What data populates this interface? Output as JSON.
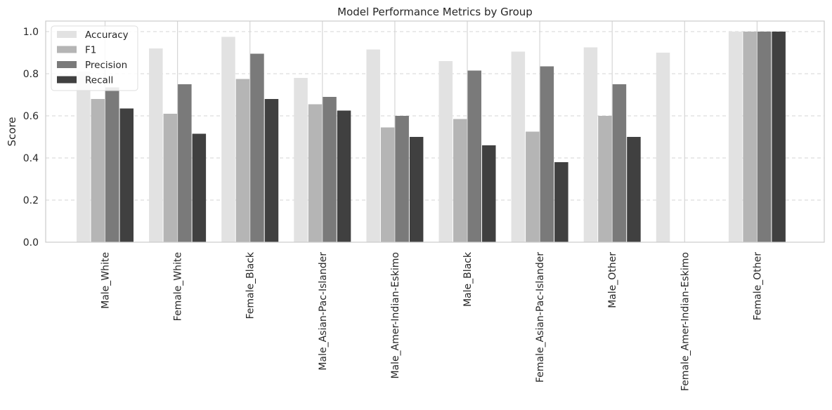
{
  "chart_data": {
    "type": "bar",
    "title": "Model Performance Metrics by Group",
    "xlabel": "",
    "ylabel": "Score",
    "ylim": [
      0,
      1.05
    ],
    "yticks": [
      "0.0",
      "0.2",
      "0.4",
      "0.6",
      "0.8",
      "1.0"
    ],
    "grid": "dashed-horizontal-and-vertical",
    "legend_position": "top-left",
    "categories": [
      "Male_White",
      "Female_White",
      "Female_Black",
      "Male_Asian-Pac-Islander",
      "Male_Amer-Indian-Eskimo",
      "Male_Black",
      "Female_Asian-Pac-Islander",
      "Male_Other",
      "Female_Amer-Indian-Eskimo",
      "Female_Other"
    ],
    "series": [
      {
        "name": "Accuracy",
        "color": "#e2e2e2",
        "values": [
          0.81,
          0.92,
          0.975,
          0.78,
          0.915,
          0.86,
          0.905,
          0.925,
          0.9,
          1.0
        ]
      },
      {
        "name": "F1",
        "color": "#b5b5b5",
        "values": [
          0.68,
          0.61,
          0.775,
          0.655,
          0.545,
          0.585,
          0.525,
          0.6,
          0.0,
          1.0
        ]
      },
      {
        "name": "Precision",
        "color": "#7a7a7a",
        "values": [
          0.735,
          0.75,
          0.895,
          0.69,
          0.6,
          0.815,
          0.835,
          0.75,
          0.0,
          1.0
        ]
      },
      {
        "name": "Recall",
        "color": "#404040",
        "values": [
          0.635,
          0.515,
          0.68,
          0.625,
          0.5,
          0.46,
          0.38,
          0.5,
          0.0,
          1.0
        ]
      }
    ]
  }
}
